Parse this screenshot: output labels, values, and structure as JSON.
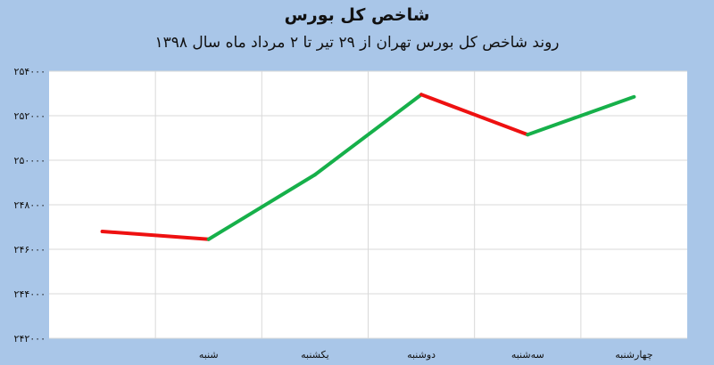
{
  "chart_data": {
    "type": "line",
    "title": "شاخص کل بورس",
    "subtitle": "روند شاخص کل بورس تهران از ۲۹ تیر تا ۲ مرداد ماه سال ۱۳۹۸",
    "categories": [
      "",
      "شنبه",
      "یکشنبه",
      "دوشنبه",
      "سه‌شنبه",
      "چهارشنبه"
    ],
    "values": [
      246800,
      246450,
      249350,
      252950,
      251150,
      252850
    ],
    "ylim": [
      242000,
      254000
    ],
    "ytick_values": [
      242000,
      244000,
      246000,
      248000,
      250000,
      252000,
      254000
    ],
    "ytick_labels": [
      "۲۴۲۰۰۰",
      "۲۴۴۰۰۰",
      "۲۴۶۰۰۰",
      "۲۴۸۰۰۰",
      "۲۵۰۰۰۰",
      "۲۵۲۰۰۰",
      "۲۵۴۰۰۰"
    ],
    "grid": true,
    "colors": {
      "up": "#16b04a",
      "down": "#ee1111",
      "plot_bg": "#ffffff",
      "grid": "#d9d9d9",
      "page_bg": "#a9c6e8"
    }
  }
}
